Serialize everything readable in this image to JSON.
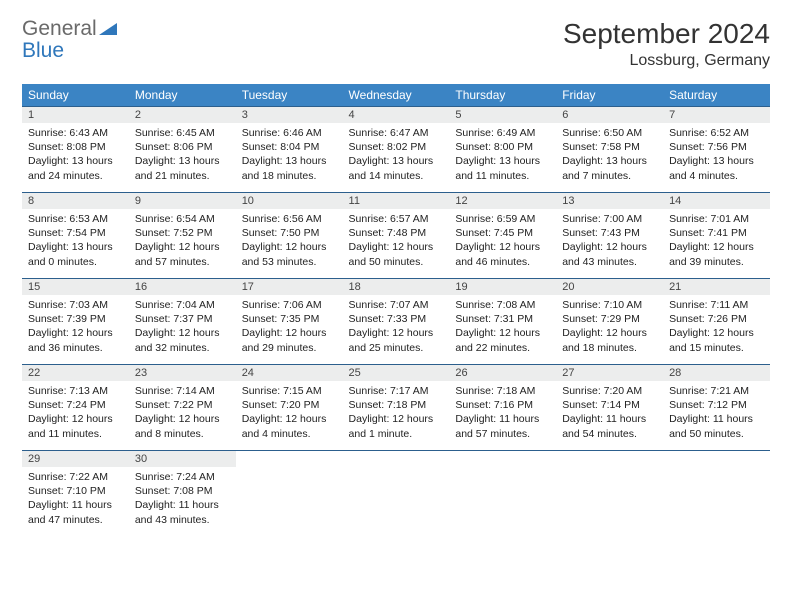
{
  "logo": {
    "general": "General",
    "blue": "Blue"
  },
  "title": "September 2024",
  "location": "Lossburg, Germany",
  "colors": {
    "header_bg": "#3b84c4",
    "header_text": "#ffffff",
    "daynum_bg": "#eceded",
    "row_border": "#2c5f8d",
    "logo_gray": "#6a6a6a",
    "logo_blue": "#2f77bb"
  },
  "weekdays": [
    "Sunday",
    "Monday",
    "Tuesday",
    "Wednesday",
    "Thursday",
    "Friday",
    "Saturday"
  ],
  "days": [
    {
      "n": "1",
      "sr": "6:43 AM",
      "ss": "8:08 PM",
      "dl": "13 hours and 24 minutes."
    },
    {
      "n": "2",
      "sr": "6:45 AM",
      "ss": "8:06 PM",
      "dl": "13 hours and 21 minutes."
    },
    {
      "n": "3",
      "sr": "6:46 AM",
      "ss": "8:04 PM",
      "dl": "13 hours and 18 minutes."
    },
    {
      "n": "4",
      "sr": "6:47 AM",
      "ss": "8:02 PM",
      "dl": "13 hours and 14 minutes."
    },
    {
      "n": "5",
      "sr": "6:49 AM",
      "ss": "8:00 PM",
      "dl": "13 hours and 11 minutes."
    },
    {
      "n": "6",
      "sr": "6:50 AM",
      "ss": "7:58 PM",
      "dl": "13 hours and 7 minutes."
    },
    {
      "n": "7",
      "sr": "6:52 AM",
      "ss": "7:56 PM",
      "dl": "13 hours and 4 minutes."
    },
    {
      "n": "8",
      "sr": "6:53 AM",
      "ss": "7:54 PM",
      "dl": "13 hours and 0 minutes."
    },
    {
      "n": "9",
      "sr": "6:54 AM",
      "ss": "7:52 PM",
      "dl": "12 hours and 57 minutes."
    },
    {
      "n": "10",
      "sr": "6:56 AM",
      "ss": "7:50 PM",
      "dl": "12 hours and 53 minutes."
    },
    {
      "n": "11",
      "sr": "6:57 AM",
      "ss": "7:48 PM",
      "dl": "12 hours and 50 minutes."
    },
    {
      "n": "12",
      "sr": "6:59 AM",
      "ss": "7:45 PM",
      "dl": "12 hours and 46 minutes."
    },
    {
      "n": "13",
      "sr": "7:00 AM",
      "ss": "7:43 PM",
      "dl": "12 hours and 43 minutes."
    },
    {
      "n": "14",
      "sr": "7:01 AM",
      "ss": "7:41 PM",
      "dl": "12 hours and 39 minutes."
    },
    {
      "n": "15",
      "sr": "7:03 AM",
      "ss": "7:39 PM",
      "dl": "12 hours and 36 minutes."
    },
    {
      "n": "16",
      "sr": "7:04 AM",
      "ss": "7:37 PM",
      "dl": "12 hours and 32 minutes."
    },
    {
      "n": "17",
      "sr": "7:06 AM",
      "ss": "7:35 PM",
      "dl": "12 hours and 29 minutes."
    },
    {
      "n": "18",
      "sr": "7:07 AM",
      "ss": "7:33 PM",
      "dl": "12 hours and 25 minutes."
    },
    {
      "n": "19",
      "sr": "7:08 AM",
      "ss": "7:31 PM",
      "dl": "12 hours and 22 minutes."
    },
    {
      "n": "20",
      "sr": "7:10 AM",
      "ss": "7:29 PM",
      "dl": "12 hours and 18 minutes."
    },
    {
      "n": "21",
      "sr": "7:11 AM",
      "ss": "7:26 PM",
      "dl": "12 hours and 15 minutes."
    },
    {
      "n": "22",
      "sr": "7:13 AM",
      "ss": "7:24 PM",
      "dl": "12 hours and 11 minutes."
    },
    {
      "n": "23",
      "sr": "7:14 AM",
      "ss": "7:22 PM",
      "dl": "12 hours and 8 minutes."
    },
    {
      "n": "24",
      "sr": "7:15 AM",
      "ss": "7:20 PM",
      "dl": "12 hours and 4 minutes."
    },
    {
      "n": "25",
      "sr": "7:17 AM",
      "ss": "7:18 PM",
      "dl": "12 hours and 1 minute."
    },
    {
      "n": "26",
      "sr": "7:18 AM",
      "ss": "7:16 PM",
      "dl": "11 hours and 57 minutes."
    },
    {
      "n": "27",
      "sr": "7:20 AM",
      "ss": "7:14 PM",
      "dl": "11 hours and 54 minutes."
    },
    {
      "n": "28",
      "sr": "7:21 AM",
      "ss": "7:12 PM",
      "dl": "11 hours and 50 minutes."
    },
    {
      "n": "29",
      "sr": "7:22 AM",
      "ss": "7:10 PM",
      "dl": "11 hours and 47 minutes."
    },
    {
      "n": "30",
      "sr": "7:24 AM",
      "ss": "7:08 PM",
      "dl": "11 hours and 43 minutes."
    }
  ],
  "labels": {
    "sunrise": "Sunrise:",
    "sunset": "Sunset:",
    "daylight": "Daylight:"
  }
}
